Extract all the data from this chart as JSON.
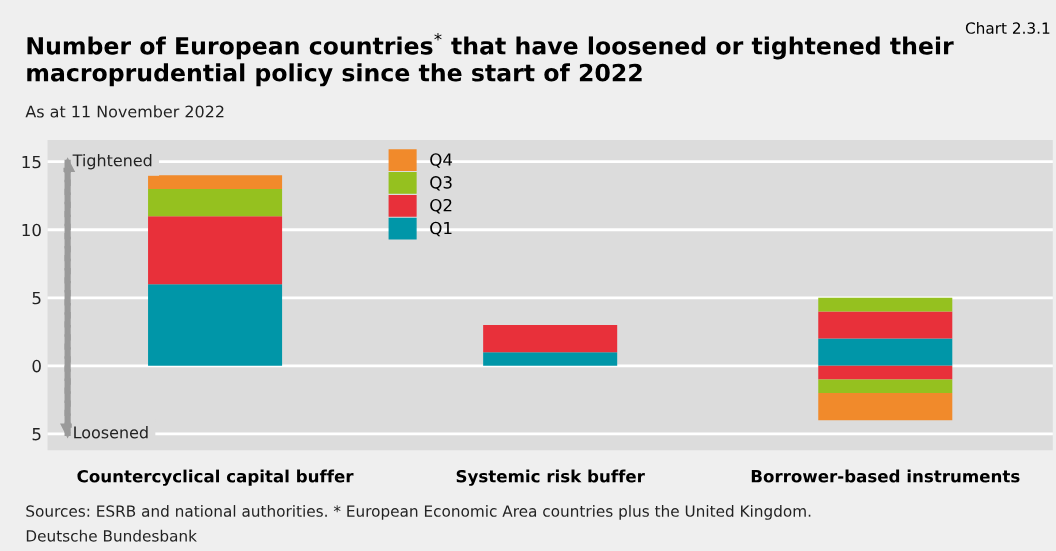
{
  "chart_data": {
    "type": "bar",
    "stacked": true,
    "title": "Number of European countries$^{*}$ that have loosened or tightened their macroprudential policy since the start of 2022",
    "subtitle": "As at 11 November 2022",
    "categories": [
      "Countercyclical capital buffer",
      "Systemic risk buffer",
      "Borrower-based instruments"
    ],
    "series": [
      {
        "name": "Q1",
        "color": "#0096a8",
        "values": [
          6,
          1,
          2
        ]
      },
      {
        "name": "Q2",
        "color": "#e8303a",
        "values": [
          5,
          2,
          2
        ]
      },
      {
        "name": "Q3",
        "color": "#95c11f",
        "values": [
          2,
          null,
          1
        ]
      },
      {
        "name": "Q4",
        "color": "#f18a2b",
        "values": [
          1,
          null,
          null
        ]
      },
      {
        "color": "#e8303a",
        "values": [
          null,
          null,
          -1
        ]
      },
      {
        "color": "#95c11f",
        "values": [
          null,
          null,
          -1
        ]
      },
      {
        "color": "#f18a2b",
        "values": [
          null,
          null,
          -2
        ]
      }
    ],
    "ylim": [
      -6.2,
      16.6
    ],
    "yticks": [
      {
        "value": -5,
        "label": "5"
      },
      0,
      5,
      10,
      15
    ],
    "grid": "y",
    "legend": "top",
    "annotations": [
      "Chart 2.3.1",
      "Tightened",
      "Loosened",
      "Sources: ESRB and national authorities. * European Economic Area countries plus the United Kingdom.",
      "Deutsche Bundesbank"
    ]
  }
}
